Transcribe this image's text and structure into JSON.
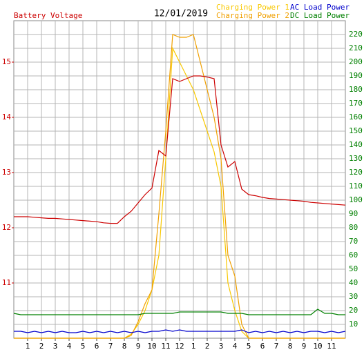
{
  "chart_data": {
    "type": "line",
    "title": "12/01/2019",
    "y_label": "Battery Voltage",
    "xlim": [
      0,
      24
    ],
    "xticks": [
      1,
      2,
      3,
      4,
      5,
      6,
      7,
      8,
      9,
      10,
      11,
      12,
      {
        "value": 13,
        "label": "1"
      },
      {
        "value": 14,
        "label": "2"
      },
      {
        "value": 15,
        "label": "3"
      },
      {
        "value": 16,
        "label": "4"
      },
      {
        "value": 17,
        "label": "5"
      },
      {
        "value": 18,
        "label": "6"
      },
      {
        "value": 19,
        "label": "7"
      },
      {
        "value": 20,
        "label": "8"
      },
      {
        "value": 21,
        "label": "9"
      },
      {
        "value": 22,
        "label": "10"
      },
      {
        "value": 23,
        "label": "11"
      }
    ],
    "ylim": [
      10,
      15.75
    ],
    "yticks": [
      11,
      12,
      13,
      14,
      15
    ],
    "y2lim": [
      0,
      230
    ],
    "y2ticks": [
      10,
      20,
      30,
      40,
      50,
      60,
      70,
      80,
      90,
      100,
      110,
      120,
      130,
      140,
      150,
      160,
      170,
      180,
      190,
      200,
      210,
      220
    ],
    "grid": true,
    "x": [
      0,
      0.5,
      1,
      1.5,
      2,
      2.5,
      3,
      3.5,
      4,
      4.5,
      5,
      5.5,
      6,
      6.5,
      7,
      7.5,
      8,
      8.5,
      9,
      9.5,
      10,
      10.5,
      11,
      11.5,
      12,
      12.5,
      13,
      13.5,
      14,
      14.5,
      15,
      15.5,
      16,
      16.5,
      17,
      17.5,
      18,
      18.5,
      19,
      19.5,
      20,
      20.5,
      21,
      21.5,
      22,
      22.5,
      23,
      23.5,
      24
    ],
    "series": [
      {
        "name": "Charging Power 1",
        "color": "#f8c800",
        "axis": "y2",
        "values": [
          0,
          0,
          0,
          0,
          0,
          0,
          0,
          0,
          0,
          0,
          0,
          0,
          0,
          0,
          0,
          0,
          0,
          3,
          10,
          20,
          35,
          60,
          130,
          210,
          200,
          190,
          180,
          165,
          150,
          135,
          110,
          40,
          20,
          5,
          0,
          0,
          0,
          0,
          0,
          0,
          0,
          0,
          0,
          0,
          0,
          0,
          0,
          0,
          0
        ]
      },
      {
        "name": "Charging Power 2",
        "color": "#f0a000",
        "axis": "y2",
        "values": [
          0,
          0,
          0,
          0,
          0,
          0,
          0,
          0,
          0,
          0,
          0,
          0,
          0,
          0,
          0,
          0,
          0,
          2,
          12,
          25,
          35,
          90,
          150,
          220,
          218,
          218,
          220,
          200,
          180,
          160,
          130,
          60,
          45,
          10,
          0,
          0,
          0,
          0,
          0,
          0,
          0,
          0,
          0,
          0,
          0,
          0,
          0,
          0,
          0
        ]
      },
      {
        "name": "AC Load Power",
        "color": "#0000cc",
        "axis": "y2",
        "values": [
          5,
          5,
          4,
          5,
          4,
          5,
          4,
          5,
          4,
          4,
          5,
          4,
          5,
          4,
          5,
          4,
          5,
          4,
          5,
          4,
          5,
          5,
          6,
          5,
          6,
          5,
          5,
          5,
          5,
          5,
          5,
          5,
          5,
          6,
          4,
          5,
          4,
          5,
          4,
          5,
          4,
          5,
          4,
          5,
          5,
          4,
          5,
          4,
          5
        ]
      },
      {
        "name": "DC Load Power",
        "color": "#008000",
        "axis": "y2",
        "values": [
          18,
          17,
          17,
          17,
          17,
          17,
          17,
          17,
          17,
          17,
          17,
          17,
          17,
          17,
          17,
          17,
          17,
          17,
          17,
          18,
          18,
          18,
          18,
          18,
          19,
          19,
          19,
          19,
          19,
          19,
          19,
          18,
          18,
          18,
          17,
          17,
          17,
          17,
          17,
          17,
          17,
          17,
          17,
          17,
          21,
          18,
          18,
          17,
          17
        ]
      },
      {
        "name": "Battery Voltage",
        "color": "#cc0000",
        "axis": "y",
        "values": [
          12.2,
          12.2,
          12.2,
          12.19,
          12.18,
          12.17,
          12.17,
          12.16,
          12.15,
          12.14,
          12.13,
          12.12,
          12.11,
          12.09,
          12.08,
          12.08,
          12.2,
          12.3,
          12.45,
          12.6,
          12.72,
          13.4,
          13.3,
          14.7,
          14.65,
          14.7,
          14.75,
          14.75,
          14.73,
          14.7,
          13.5,
          13.1,
          13.2,
          12.7,
          12.6,
          12.58,
          12.55,
          12.53,
          12.52,
          12.51,
          12.5,
          12.49,
          12.48,
          12.46,
          12.45,
          12.44,
          12.43,
          12.42,
          12.41
        ]
      }
    ]
  }
}
